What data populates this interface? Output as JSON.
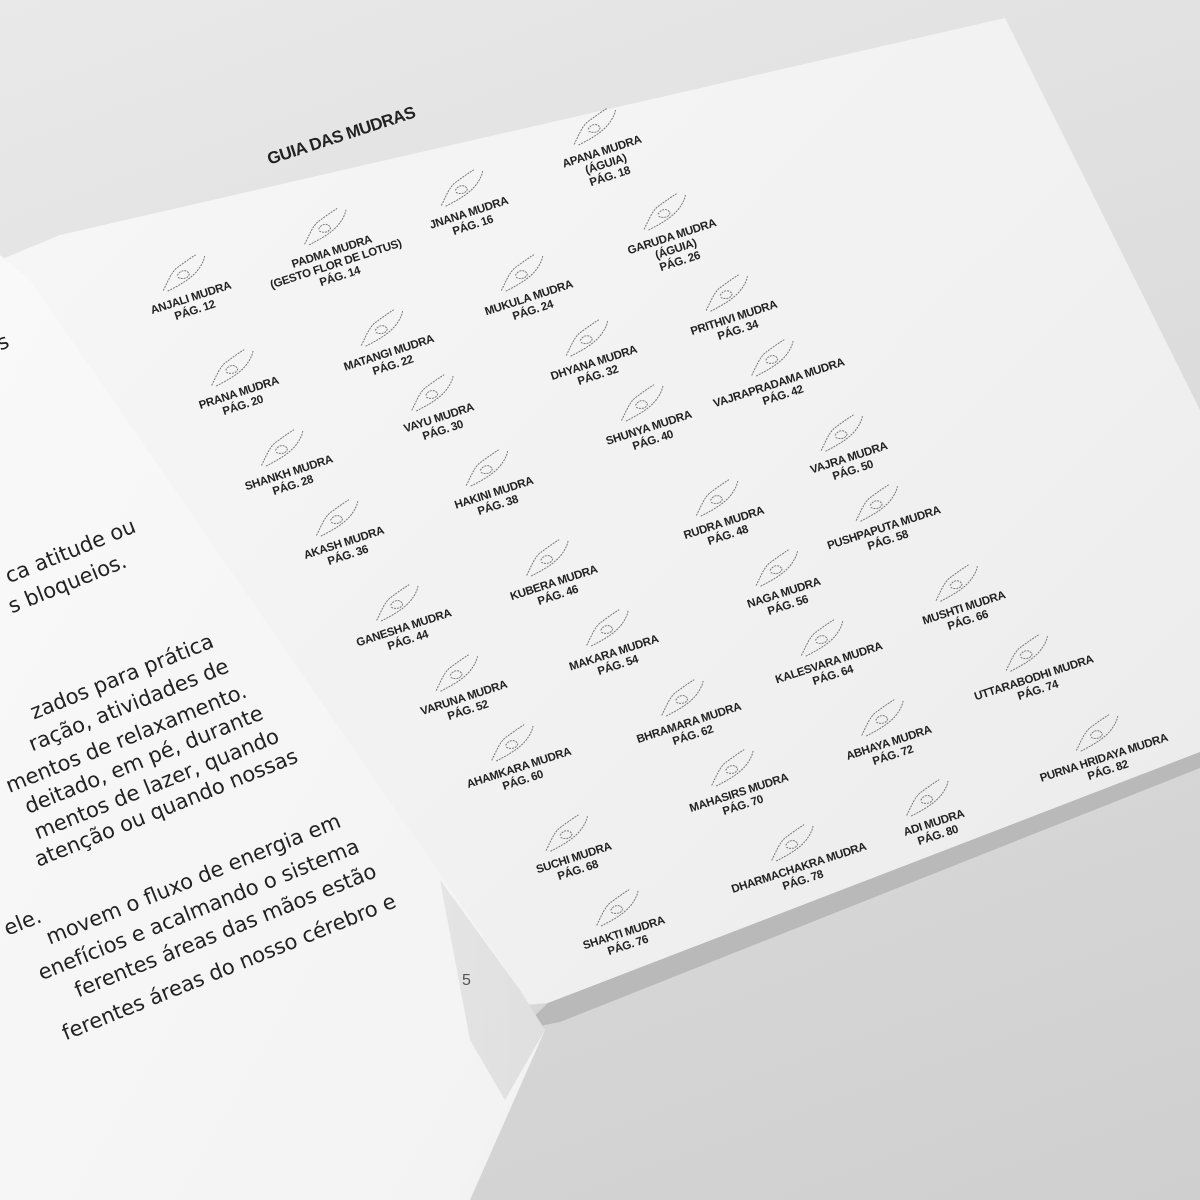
{
  "left_page": {
    "lines": [
      "s",
      "ca atitude ou",
      "s bloqueios.",
      "zados para prática",
      "ração, atividades de",
      "mentos de relaxamento.",
      "deitado, em pé, durante",
      "mentos de lazer, quando",
      "atenção ou quando nossas",
      "ele.",
      "movem o fluxo de energia em",
      "enefícios e acalmando o sistema",
      "ferentes áreas das mãos estão",
      "ferentes áreas do nosso cérebro e"
    ],
    "page_number": "5"
  },
  "right_page": {
    "title": "GUIA DAS MUDRAS",
    "mudras": [
      {
        "name": "ANJALI MUDRA",
        "page": "PÁG. 12",
        "icon": "hands-praying-icon"
      },
      {
        "name": "PADMA MUDRA",
        "note": "(GESTO FLOR DE LOTUS)",
        "page": "PÁG. 14",
        "icon": "lotus-hands-icon"
      },
      {
        "name": "JNANA MUDRA",
        "page": "PÁG. 16",
        "icon": "hand-gesture-icon"
      },
      {
        "name": "APANA MUDRA",
        "note": "(ÁGUIA)",
        "page": "PÁG. 18",
        "icon": "hand-gesture-icon"
      },
      {
        "name": "GARUDA MUDRA",
        "note": "(ÁGUIA)",
        "page": "PÁG. 26",
        "icon": "eagle-hands-icon"
      },
      {
        "name": "MUKULA MUDRA",
        "page": "PÁG. 24",
        "icon": "hand-gesture-icon"
      },
      {
        "name": "PRITHIVI MUDRA",
        "page": "PÁG. 34",
        "icon": "hand-gesture-icon"
      },
      {
        "name": "MATANGI MUDRA",
        "page": "PÁG. 22",
        "icon": "hand-gesture-icon"
      },
      {
        "name": "PRANA MUDRA",
        "page": "PÁG. 20",
        "icon": "hand-gesture-icon"
      },
      {
        "name": "DHYANA MUDRA",
        "page": "PÁG. 32",
        "icon": "hand-gesture-icon"
      },
      {
        "name": "VAJRAPRADAMA MUDRA",
        "page": "PÁG. 42",
        "icon": "hand-gesture-icon"
      },
      {
        "name": "VAYU MUDRA",
        "page": "PÁG. 30",
        "icon": "hand-gesture-icon"
      },
      {
        "name": "SHUNYA MUDRA",
        "page": "PÁG. 40",
        "icon": "hand-gesture-icon"
      },
      {
        "name": "SHANKH MUDRA",
        "page": "PÁG. 28",
        "icon": "hand-gesture-icon"
      },
      {
        "name": "VAJRA MUDRA",
        "page": "PÁG. 50",
        "icon": "hand-gesture-icon"
      },
      {
        "name": "HAKINI MUDRA",
        "page": "PÁG. 38",
        "icon": "hand-gesture-icon"
      },
      {
        "name": "RUDRA MUDRA",
        "page": "PÁG. 48",
        "icon": "hand-gesture-icon"
      },
      {
        "name": "AKASH MUDRA",
        "page": "PÁG. 36",
        "icon": "hand-gesture-icon"
      },
      {
        "name": "PUSHPAPUTA MUDRA",
        "page": "PÁG. 58",
        "icon": "hand-gesture-icon"
      },
      {
        "name": "KUBERA MUDRA",
        "page": "PÁG. 46",
        "icon": "hand-gesture-icon"
      },
      {
        "name": "NAGA MUDRA",
        "page": "PÁG. 56",
        "icon": "hand-gesture-icon"
      },
      {
        "name": "GANESHA MUDRA",
        "page": "PÁG. 44",
        "icon": "hand-gesture-icon"
      },
      {
        "name": "MUSHTI MUDRA",
        "page": "PÁG. 66",
        "icon": "fist-icon"
      },
      {
        "name": "MAKARA MUDRA",
        "page": "PÁG. 54",
        "icon": "hand-gesture-icon"
      },
      {
        "name": "KALESVARA MUDRA",
        "page": "PÁG. 64",
        "icon": "hand-gesture-icon"
      },
      {
        "name": "UTTARABODHI MUDRA",
        "page": "PÁG. 74",
        "icon": "hand-gesture-icon"
      },
      {
        "name": "VARUNA MUDRA",
        "page": "PÁG. 52",
        "icon": "hand-gesture-icon"
      },
      {
        "name": "BHRAMARA MUDRA",
        "page": "PÁG. 62",
        "icon": "hand-gesture-icon"
      },
      {
        "name": "ABHAYA MUDRA",
        "page": "PÁG. 72",
        "icon": "open-palm-icon"
      },
      {
        "name": "AHAMKARA MUDRA",
        "page": "PÁG. 60",
        "icon": "hand-gesture-icon"
      },
      {
        "name": "PURNA HRIDAYA MUDRA",
        "page": "PÁG. 82",
        "icon": "heart-hands-icon"
      },
      {
        "name": "MAHASIRS MUDRA",
        "page": "PÁG. 70",
        "icon": "hand-gesture-icon"
      },
      {
        "name": "ADI MUDRA",
        "page": "PÁG. 80",
        "icon": "fist-icon"
      },
      {
        "name": "SUCHI MUDRA",
        "page": "PÁG. 68",
        "icon": "pointing-hand-icon"
      },
      {
        "name": "DHARMACHAKRA MUDRA",
        "page": "PÁG. 78",
        "icon": "hand-gesture-icon"
      },
      {
        "name": "SHAKTI MUDRA",
        "page": "PÁG. 76",
        "icon": "hand-gesture-icon"
      }
    ]
  }
}
